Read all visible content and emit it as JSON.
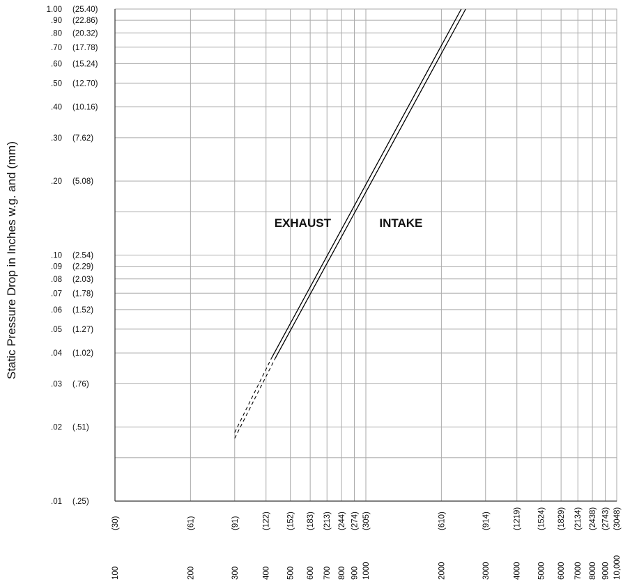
{
  "chart_data": {
    "type": "line",
    "ylabel": "Static Pressure Drop in Inches w.g. and (mm)",
    "xlabel": "",
    "x_scale": "log",
    "y_scale": "log",
    "xlim": [
      100,
      10000
    ],
    "ylim": [
      0.01,
      1.0
    ],
    "grid": true,
    "y_ticks": [
      {
        "value": 1.0,
        "label": "1.00",
        "mm": "(25.40)"
      },
      {
        "value": 0.9,
        "label": ".90",
        "mm": "(22.86)"
      },
      {
        "value": 0.8,
        "label": ".80",
        "mm": "(20.32)"
      },
      {
        "value": 0.7,
        "label": ".70",
        "mm": "(17.78)"
      },
      {
        "value": 0.6,
        "label": ".60",
        "mm": "(15.24)"
      },
      {
        "value": 0.5,
        "label": ".50",
        "mm": "(12.70)"
      },
      {
        "value": 0.4,
        "label": ".40",
        "mm": "(10.16)"
      },
      {
        "value": 0.3,
        "label": ".30",
        "mm": "(7.62)"
      },
      {
        "value": 0.2,
        "label": ".20",
        "mm": "(5.08)"
      },
      {
        "value": 0.1,
        "label": ".10",
        "mm": "(2.54)"
      },
      {
        "value": 0.09,
        "label": ".09",
        "mm": "(2.29)"
      },
      {
        "value": 0.08,
        "label": ".08",
        "mm": "(2.03)"
      },
      {
        "value": 0.07,
        "label": ".07",
        "mm": "(1.78)"
      },
      {
        "value": 0.06,
        "label": ".06",
        "mm": "(1.52)"
      },
      {
        "value": 0.05,
        "label": ".05",
        "mm": "(1.27)"
      },
      {
        "value": 0.04,
        "label": ".04",
        "mm": "(1.02)"
      },
      {
        "value": 0.03,
        "label": ".03",
        "mm": "(.76)"
      },
      {
        "value": 0.02,
        "label": ".02",
        "mm": "(.51)"
      },
      {
        "value": 0.01,
        "label": ".01",
        "mm": "(.25)"
      }
    ],
    "y_minor_gridlines": [
      0.15,
      0.015
    ],
    "x_ticks": [
      {
        "value": 100,
        "label": "100",
        "mm": "(30)"
      },
      {
        "value": 200,
        "label": "200",
        "mm": "(61)"
      },
      {
        "value": 300,
        "label": "300",
        "mm": "(91)"
      },
      {
        "value": 400,
        "label": "400",
        "mm": "(122)"
      },
      {
        "value": 500,
        "label": "500",
        "mm": "(152)"
      },
      {
        "value": 600,
        "label": "600",
        "mm": "(183)"
      },
      {
        "value": 700,
        "label": "700",
        "mm": "(213)"
      },
      {
        "value": 800,
        "label": "800",
        "mm": "(244)"
      },
      {
        "value": 900,
        "label": "900",
        "mm": "(274)"
      },
      {
        "value": 1000,
        "label": "1000",
        "mm": "(305)"
      },
      {
        "value": 2000,
        "label": "2000",
        "mm": "(610)"
      },
      {
        "value": 3000,
        "label": "3000",
        "mm": "(914)"
      },
      {
        "value": 4000,
        "label": "4000",
        "mm": "(1219)"
      },
      {
        "value": 5000,
        "label": "5000",
        "mm": "(1524)"
      },
      {
        "value": 6000,
        "label": "6000",
        "mm": "(1829)"
      },
      {
        "value": 7000,
        "label": "7000",
        "mm": "(2134)"
      },
      {
        "value": 8000,
        "label": "8000",
        "mm": "(2438)"
      },
      {
        "value": 9000,
        "label": "9000",
        "mm": "(2743)"
      },
      {
        "value": 10000,
        "label": "10,000",
        "mm": "(3048)"
      }
    ],
    "series": [
      {
        "name": "EXHAUST",
        "solid": [
          [
            420,
            0.038
          ],
          [
            2400,
            1.0
          ]
        ],
        "dashed": [
          [
            300,
            0.019
          ],
          [
            420,
            0.038
          ]
        ]
      },
      {
        "name": "INTAKE",
        "solid": [
          [
            435,
            0.038
          ],
          [
            2500,
            1.0
          ]
        ],
        "dashed": [
          [
            300,
            0.018
          ],
          [
            435,
            0.038
          ]
        ]
      }
    ],
    "annotations": [
      {
        "text": "EXHAUST",
        "x": 560,
        "y": 0.13
      },
      {
        "text": "INTAKE",
        "x": 1380,
        "y": 0.13
      }
    ]
  }
}
